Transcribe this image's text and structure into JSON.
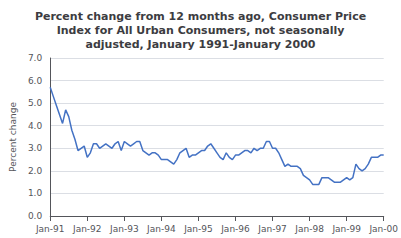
{
  "chart_data": {
    "type": "line",
    "title": "Percent change from 12 months ago, Consumer Price\nIndex for All Urban Consumers, not seasonally\nadjusted, January 1991-January 2000",
    "ylabel": "Percent change",
    "categories": [
      "Jan-91",
      null,
      null,
      null,
      null,
      null,
      null,
      null,
      null,
      null,
      null,
      null,
      "Jan-92",
      null,
      null,
      null,
      null,
      null,
      null,
      null,
      null,
      null,
      null,
      null,
      "Jan-93",
      null,
      null,
      null,
      null,
      null,
      null,
      null,
      null,
      null,
      null,
      null,
      "Jan-94",
      null,
      null,
      null,
      null,
      null,
      null,
      null,
      null,
      null,
      null,
      null,
      "Jan-95",
      null,
      null,
      null,
      null,
      null,
      null,
      null,
      null,
      null,
      null,
      null,
      "Jan-96",
      null,
      null,
      null,
      null,
      null,
      null,
      null,
      null,
      null,
      null,
      null,
      "Jan-97",
      null,
      null,
      null,
      null,
      null,
      null,
      null,
      null,
      null,
      null,
      null,
      "Jan-98",
      null,
      null,
      null,
      null,
      null,
      null,
      null,
      null,
      null,
      null,
      null,
      "Jan-99",
      null,
      null,
      null,
      null,
      null,
      null,
      null,
      null,
      null,
      null,
      null,
      "Jan-00"
    ],
    "values": [
      5.7,
      5.3,
      4.9,
      4.5,
      4.1,
      4.7,
      4.4,
      3.8,
      3.4,
      2.9,
      3.0,
      3.1,
      2.6,
      2.8,
      3.2,
      3.2,
      3.0,
      3.1,
      3.2,
      3.1,
      3.0,
      3.2,
      3.3,
      2.9,
      3.3,
      3.2,
      3.1,
      3.2,
      3.3,
      3.3,
      2.9,
      2.8,
      2.7,
      2.8,
      2.8,
      2.7,
      2.5,
      2.5,
      2.5,
      2.4,
      2.3,
      2.5,
      2.8,
      2.9,
      3.0,
      2.6,
      2.7,
      2.7,
      2.8,
      2.9,
      2.9,
      3.1,
      3.2,
      3.0,
      2.8,
      2.6,
      2.5,
      2.8,
      2.6,
      2.5,
      2.7,
      2.7,
      2.8,
      2.9,
      2.9,
      2.8,
      3.0,
      2.9,
      3.0,
      3.0,
      3.3,
      3.3,
      3.0,
      3.0,
      2.8,
      2.5,
      2.2,
      2.3,
      2.2,
      2.2,
      2.2,
      2.1,
      1.8,
      1.7,
      1.6,
      1.4,
      1.4,
      1.4,
      1.7,
      1.7,
      1.7,
      1.6,
      1.5,
      1.5,
      1.5,
      1.6,
      1.7,
      1.6,
      1.7,
      2.3,
      2.1,
      2.0,
      2.1,
      2.3,
      2.6,
      2.6,
      2.6,
      2.7,
      2.7
    ],
    "color": "#4472c4",
    "ylim": [
      0.0,
      7.0
    ],
    "yticks": [
      {
        "value": 0.0,
        "label": "0.0"
      },
      {
        "value": 1.0,
        "label": "1.0"
      },
      {
        "value": 2.0,
        "label": "2.0"
      },
      {
        "value": 3.0,
        "label": "3.0"
      },
      {
        "value": 4.0,
        "label": "4.0"
      },
      {
        "value": 5.0,
        "label": "5.0"
      },
      {
        "value": 6.0,
        "label": "6.0"
      },
      {
        "value": 7.0,
        "label": "7.0"
      }
    ],
    "grid": true
  }
}
